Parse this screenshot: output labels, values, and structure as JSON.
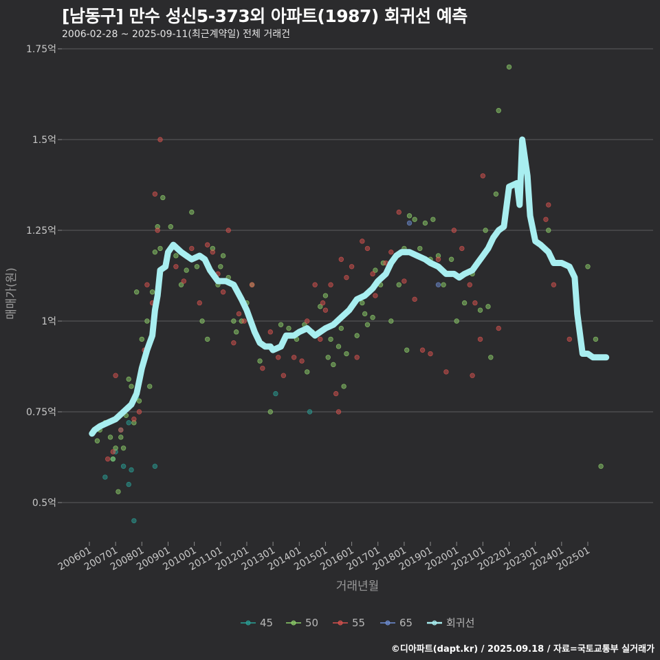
{
  "header": {
    "title": "[남동구] 만수 성신5-373외 아파트(1987) 회귀선 예측",
    "subtitle": "2006-02-28 ~ 2025-09-11(최근계약일) 전체 거래건"
  },
  "footer": {
    "credit": "©디아파트(dapt.kr) / 2025.09.18 / 자료=국토교통부 실거래가"
  },
  "chart_data": {
    "type": "scatter",
    "title": "[남동구] 만수 성신5-373외 아파트(1987) 회귀선 예측",
    "xlabel": "거래년월",
    "ylabel": "매매가(원)",
    "xlim": [
      2006.0,
      2025.9
    ],
    "ylim": [
      0.4,
      1.78
    ],
    "yticks": [
      0.5,
      0.75,
      1.0,
      1.25,
      1.5,
      1.75
    ],
    "ytick_labels": [
      "0.5억",
      "0.75억",
      "1억",
      "1.25억",
      "1.5억",
      "1.75억"
    ],
    "xticks": [
      2006,
      2007,
      2008,
      2009,
      2010,
      2011,
      2012,
      2013,
      2014,
      2015,
      2016,
      2017,
      2018,
      2019,
      2020,
      2021,
      2022,
      2023,
      2024,
      2025
    ],
    "xtick_labels": [
      "200601",
      "200701",
      "200801",
      "200901",
      "201001",
      "201101",
      "201201",
      "201301",
      "201401",
      "201501",
      "201601",
      "201701",
      "201801",
      "201901",
      "202001",
      "202101",
      "202201",
      "202301",
      "202401",
      "202501"
    ],
    "colors": {
      "45": "#2aa198",
      "50": "#8fd16b",
      "55": "#d9534f",
      "65": "#6f8fd6",
      "regression": "#a8eef0"
    },
    "legend": [
      {
        "key": "45",
        "label": "45",
        "color": "#2aa198"
      },
      {
        "key": "50",
        "label": "50",
        "color": "#8fd16b"
      },
      {
        "key": "55",
        "label": "55",
        "color": "#d9534f"
      },
      {
        "key": "65",
        "label": "65",
        "color": "#6f8fd6"
      },
      {
        "key": "regression",
        "label": "회귀선",
        "color": "#a8eef0"
      }
    ],
    "series": [
      {
        "name": "45",
        "points": [
          [
            2006.6,
            0.57
          ],
          [
            2006.9,
            0.62
          ],
          [
            2007.0,
            0.64
          ],
          [
            2007.3,
            0.6
          ],
          [
            2007.5,
            0.55
          ],
          [
            2007.6,
            0.59
          ],
          [
            2007.7,
            0.45
          ],
          [
            2007.8,
            0.79
          ],
          [
            2008.5,
            0.6
          ],
          [
            2013.1,
            0.8
          ],
          [
            2014.4,
            0.75
          ],
          [
            2007.2,
            0.7
          ],
          [
            2007.5,
            0.72
          ]
        ]
      },
      {
        "name": "50",
        "points": [
          [
            2006.3,
            0.67
          ],
          [
            2006.4,
            0.7
          ],
          [
            2006.6,
            0.72
          ],
          [
            2006.8,
            0.68
          ],
          [
            2006.9,
            0.62
          ],
          [
            2007.0,
            0.65
          ],
          [
            2007.1,
            0.53
          ],
          [
            2007.2,
            0.68
          ],
          [
            2007.3,
            0.65
          ],
          [
            2007.4,
            0.74
          ],
          [
            2007.5,
            0.84
          ],
          [
            2007.6,
            0.82
          ],
          [
            2007.7,
            0.72
          ],
          [
            2007.8,
            1.08
          ],
          [
            2007.9,
            0.78
          ],
          [
            2008.0,
            0.95
          ],
          [
            2008.1,
            0.9
          ],
          [
            2008.2,
            1.0
          ],
          [
            2008.3,
            0.82
          ],
          [
            2008.4,
            1.08
          ],
          [
            2008.5,
            1.19
          ],
          [
            2008.6,
            1.26
          ],
          [
            2008.7,
            1.2
          ],
          [
            2008.8,
            1.34
          ],
          [
            2009.1,
            1.26
          ],
          [
            2009.3,
            1.18
          ],
          [
            2009.5,
            1.1
          ],
          [
            2009.7,
            1.14
          ],
          [
            2009.9,
            1.3
          ],
          [
            2010.1,
            1.15
          ],
          [
            2010.3,
            1.0
          ],
          [
            2010.5,
            0.95
          ],
          [
            2010.7,
            1.2
          ],
          [
            2010.9,
            1.1
          ],
          [
            2011.0,
            1.15
          ],
          [
            2011.1,
            1.18
          ],
          [
            2011.3,
            1.12
          ],
          [
            2011.5,
            1.0
          ],
          [
            2011.6,
            0.97
          ],
          [
            2011.8,
            1.0
          ],
          [
            2012.0,
            1.05
          ],
          [
            2012.2,
            1.1
          ],
          [
            2012.5,
            0.89
          ],
          [
            2012.9,
            0.75
          ],
          [
            2013.3,
            0.99
          ],
          [
            2013.6,
            0.98
          ],
          [
            2013.9,
            0.95
          ],
          [
            2014.2,
            0.99
          ],
          [
            2014.3,
            0.86
          ],
          [
            2014.5,
            0.97
          ],
          [
            2014.8,
            1.04
          ],
          [
            2015.0,
            1.07
          ],
          [
            2015.1,
            0.9
          ],
          [
            2015.2,
            0.95
          ],
          [
            2015.3,
            0.88
          ],
          [
            2015.5,
            0.93
          ],
          [
            2015.6,
            0.98
          ],
          [
            2015.7,
            0.82
          ],
          [
            2015.8,
            0.91
          ],
          [
            2016.0,
            1.04
          ],
          [
            2016.2,
            0.96
          ],
          [
            2016.4,
            1.05
          ],
          [
            2016.6,
            0.99
          ],
          [
            2016.8,
            1.01
          ],
          [
            2016.9,
            1.14
          ],
          [
            2017.2,
            1.16
          ],
          [
            2017.5,
            1.0
          ],
          [
            2017.8,
            1.1
          ],
          [
            2018.0,
            1.2
          ],
          [
            2018.2,
            1.29
          ],
          [
            2018.4,
            1.28
          ],
          [
            2018.6,
            1.2
          ],
          [
            2018.8,
            1.27
          ],
          [
            2019.0,
            1.17
          ],
          [
            2019.3,
            1.18
          ],
          [
            2019.5,
            1.1
          ],
          [
            2019.8,
            1.17
          ],
          [
            2020.0,
            1.0
          ],
          [
            2020.3,
            1.05
          ],
          [
            2020.6,
            1.13
          ],
          [
            2020.9,
            1.03
          ],
          [
            2021.1,
            1.25
          ],
          [
            2021.2,
            1.04
          ],
          [
            2021.5,
            1.35
          ],
          [
            2021.6,
            1.58
          ],
          [
            2022.0,
            1.7
          ],
          [
            2022.4,
            1.38
          ],
          [
            2023.5,
            1.25
          ],
          [
            2025.0,
            1.15
          ],
          [
            2025.3,
            0.95
          ],
          [
            2025.5,
            0.6
          ],
          [
            2017.1,
            1.1
          ],
          [
            2018.1,
            0.92
          ],
          [
            2019.1,
            1.28
          ],
          [
            2016.5,
            1.02
          ],
          [
            2021.3,
            0.9
          ]
        ]
      },
      {
        "name": "55",
        "points": [
          [
            2006.7,
            0.62
          ],
          [
            2006.9,
            0.64
          ],
          [
            2007.0,
            0.85
          ],
          [
            2007.2,
            0.7
          ],
          [
            2007.5,
            0.76
          ],
          [
            2007.7,
            0.73
          ],
          [
            2007.9,
            0.75
          ],
          [
            2008.1,
            0.92
          ],
          [
            2008.2,
            1.1
          ],
          [
            2008.4,
            1.05
          ],
          [
            2008.5,
            1.35
          ],
          [
            2008.6,
            1.25
          ],
          [
            2008.7,
            1.5
          ],
          [
            2009.3,
            1.15
          ],
          [
            2009.6,
            1.11
          ],
          [
            2009.9,
            1.2
          ],
          [
            2010.2,
            1.05
          ],
          [
            2010.5,
            1.21
          ],
          [
            2010.7,
            1.19
          ],
          [
            2010.9,
            1.13
          ],
          [
            2011.1,
            1.08
          ],
          [
            2011.3,
            1.25
          ],
          [
            2011.5,
            0.94
          ],
          [
            2011.7,
            1.02
          ],
          [
            2011.9,
            1.0
          ],
          [
            2012.2,
            1.1
          ],
          [
            2012.6,
            0.87
          ],
          [
            2012.9,
            0.97
          ],
          [
            2013.2,
            0.9
          ],
          [
            2013.4,
            0.85
          ],
          [
            2013.8,
            0.9
          ],
          [
            2014.1,
            0.89
          ],
          [
            2014.3,
            1.0
          ],
          [
            2014.6,
            1.1
          ],
          [
            2014.8,
            0.95
          ],
          [
            2015.0,
            1.03
          ],
          [
            2015.2,
            1.1
          ],
          [
            2015.4,
            0.8
          ],
          [
            2015.5,
            0.75
          ],
          [
            2015.6,
            1.17
          ],
          [
            2015.8,
            1.12
          ],
          [
            2016.0,
            1.15
          ],
          [
            2016.2,
            0.9
          ],
          [
            2016.4,
            1.22
          ],
          [
            2016.6,
            1.2
          ],
          [
            2016.9,
            1.07
          ],
          [
            2017.3,
            1.16
          ],
          [
            2017.5,
            1.19
          ],
          [
            2017.8,
            1.3
          ],
          [
            2018.0,
            1.11
          ],
          [
            2018.4,
            1.06
          ],
          [
            2018.7,
            0.92
          ],
          [
            2019.0,
            0.91
          ],
          [
            2019.3,
            1.17
          ],
          [
            2019.6,
            0.86
          ],
          [
            2019.9,
            1.25
          ],
          [
            2020.2,
            1.2
          ],
          [
            2020.5,
            1.1
          ],
          [
            2020.7,
            1.05
          ],
          [
            2020.9,
            0.95
          ],
          [
            2020.6,
            0.85
          ],
          [
            2021.0,
            1.4
          ],
          [
            2021.6,
            0.98
          ],
          [
            2023.4,
            1.28
          ],
          [
            2023.5,
            1.32
          ],
          [
            2023.7,
            1.1
          ],
          [
            2024.3,
            0.95
          ],
          [
            2016.8,
            1.13
          ],
          [
            2014.9,
            1.05
          ]
        ]
      },
      {
        "name": "65",
        "points": [
          [
            2018.2,
            1.27
          ],
          [
            2019.3,
            1.1
          ]
        ]
      }
    ],
    "regression_line": [
      [
        2006.1,
        0.69
      ],
      [
        2006.2,
        0.7
      ],
      [
        2006.4,
        0.71
      ],
      [
        2006.7,
        0.72
      ],
      [
        2007.0,
        0.73
      ],
      [
        2007.3,
        0.75
      ],
      [
        2007.6,
        0.77
      ],
      [
        2007.8,
        0.8
      ],
      [
        2008.0,
        0.87
      ],
      [
        2008.2,
        0.92
      ],
      [
        2008.4,
        0.96
      ],
      [
        2008.5,
        1.03
      ],
      [
        2008.6,
        1.07
      ],
      [
        2008.7,
        1.14
      ],
      [
        2008.9,
        1.15
      ],
      [
        2009.0,
        1.19
      ],
      [
        2009.2,
        1.21
      ],
      [
        2009.5,
        1.19
      ],
      [
        2009.7,
        1.18
      ],
      [
        2009.9,
        1.17
      ],
      [
        2010.2,
        1.18
      ],
      [
        2010.4,
        1.17
      ],
      [
        2010.6,
        1.14
      ],
      [
        2010.9,
        1.11
      ],
      [
        2011.2,
        1.11
      ],
      [
        2011.5,
        1.1
      ],
      [
        2011.8,
        1.06
      ],
      [
        2012.0,
        1.03
      ],
      [
        2012.3,
        0.97
      ],
      [
        2012.5,
        0.94
      ],
      [
        2012.7,
        0.93
      ],
      [
        2012.9,
        0.93
      ],
      [
        2013.0,
        0.92
      ],
      [
        2013.3,
        0.93
      ],
      [
        2013.5,
        0.96
      ],
      [
        2013.8,
        0.96
      ],
      [
        2014.0,
        0.97
      ],
      [
        2014.3,
        0.98
      ],
      [
        2014.6,
        0.96
      ],
      [
        2014.8,
        0.97
      ],
      [
        2015.0,
        0.98
      ],
      [
        2015.3,
        0.99
      ],
      [
        2015.6,
        1.01
      ],
      [
        2015.9,
        1.03
      ],
      [
        2016.2,
        1.06
      ],
      [
        2016.5,
        1.07
      ],
      [
        2016.8,
        1.09
      ],
      [
        2017.0,
        1.11
      ],
      [
        2017.3,
        1.13
      ],
      [
        2017.5,
        1.16
      ],
      [
        2017.7,
        1.18
      ],
      [
        2017.9,
        1.19
      ],
      [
        2018.2,
        1.19
      ],
      [
        2018.5,
        1.18
      ],
      [
        2018.8,
        1.17
      ],
      [
        2019.0,
        1.16
      ],
      [
        2019.3,
        1.15
      ],
      [
        2019.6,
        1.13
      ],
      [
        2019.9,
        1.13
      ],
      [
        2020.1,
        1.12
      ],
      [
        2020.3,
        1.13
      ],
      [
        2020.6,
        1.14
      ],
      [
        2020.8,
        1.16
      ],
      [
        2021.0,
        1.18
      ],
      [
        2021.2,
        1.2
      ],
      [
        2021.4,
        1.23
      ],
      [
        2021.6,
        1.25
      ],
      [
        2021.8,
        1.26
      ],
      [
        2022.0,
        1.37
      ],
      [
        2022.3,
        1.38
      ],
      [
        2022.4,
        1.32
      ],
      [
        2022.5,
        1.5
      ],
      [
        2022.7,
        1.4
      ],
      [
        2022.8,
        1.29
      ],
      [
        2023.0,
        1.22
      ],
      [
        2023.2,
        1.21
      ],
      [
        2023.5,
        1.19
      ],
      [
        2023.7,
        1.16
      ],
      [
        2024.0,
        1.16
      ],
      [
        2024.3,
        1.15
      ],
      [
        2024.5,
        1.12
      ],
      [
        2024.6,
        1.02
      ],
      [
        2024.8,
        0.91
      ],
      [
        2025.0,
        0.91
      ],
      [
        2025.2,
        0.9
      ],
      [
        2025.7,
        0.9
      ]
    ]
  }
}
